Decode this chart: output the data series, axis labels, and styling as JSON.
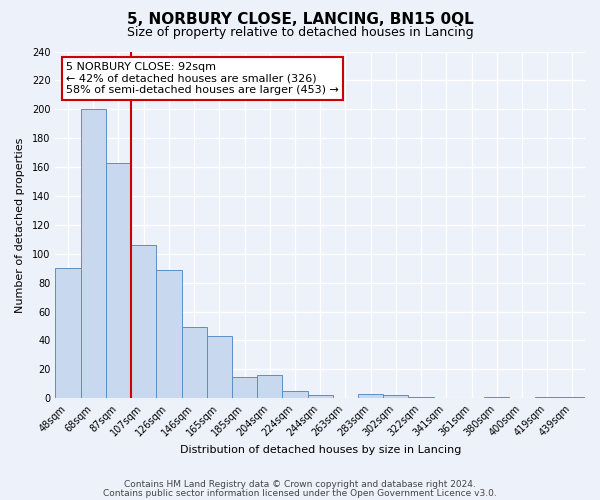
{
  "title": "5, NORBURY CLOSE, LANCING, BN15 0QL",
  "subtitle": "Size of property relative to detached houses in Lancing",
  "xlabel": "Distribution of detached houses by size in Lancing",
  "ylabel": "Number of detached properties",
  "bar_labels": [
    "48sqm",
    "68sqm",
    "87sqm",
    "107sqm",
    "126sqm",
    "146sqm",
    "165sqm",
    "185sqm",
    "204sqm",
    "224sqm",
    "244sqm",
    "263sqm",
    "283sqm",
    "302sqm",
    "322sqm",
    "341sqm",
    "361sqm",
    "380sqm",
    "400sqm",
    "419sqm",
    "439sqm"
  ],
  "bar_values": [
    90,
    200,
    163,
    106,
    89,
    49,
    43,
    15,
    16,
    5,
    2,
    0,
    3,
    2,
    1,
    0,
    0,
    1,
    0,
    1,
    1
  ],
  "bar_color": "#c8d8ee",
  "bar_edge_color": "#5b8fc4",
  "vline_color": "#cc0000",
  "vline_index": 2,
  "ylim": [
    0,
    240
  ],
  "yticks": [
    0,
    20,
    40,
    60,
    80,
    100,
    120,
    140,
    160,
    180,
    200,
    220,
    240
  ],
  "annotation_line1": "5 NORBURY CLOSE: 92sqm",
  "annotation_line2": "← 42% of detached houses are smaller (326)",
  "annotation_line3": "58% of semi-detached houses are larger (453) →",
  "footer1": "Contains HM Land Registry data © Crown copyright and database right 2024.",
  "footer2": "Contains public sector information licensed under the Open Government Licence v3.0.",
  "bg_color": "#edf1f9",
  "plot_bg_color": "#edf1f9",
  "grid_color": "#ffffff",
  "title_fontsize": 11,
  "subtitle_fontsize": 9,
  "axis_label_fontsize": 8,
  "tick_fontsize": 7,
  "footer_fontsize": 6.5,
  "ann_fontsize": 8
}
